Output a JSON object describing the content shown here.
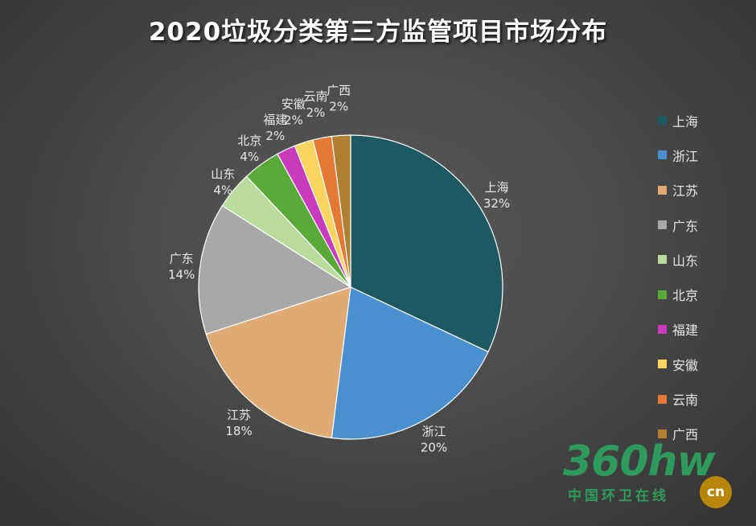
{
  "chart_data": {
    "type": "pie",
    "title": "2020垃圾分类第三方监管项目市场分布",
    "categories": [
      "上海",
      "浙江",
      "江苏",
      "广东",
      "山东",
      "北京",
      "福建",
      "安徽",
      "云南",
      "广西"
    ],
    "values": [
      32,
      20,
      18,
      14,
      4,
      4,
      2,
      2,
      2,
      2
    ],
    "data_labels": [
      "32%",
      "20%",
      "18%",
      "14%",
      "4%",
      "4%",
      "2%",
      "2%",
      "2%",
      "2%"
    ],
    "colors": [
      "#1c5962",
      "#4a90d0",
      "#e0aa74",
      "#a8a8a8",
      "#b9dc9c",
      "#5aaa3a",
      "#c83cbc",
      "#f9d560",
      "#e47835",
      "#b08030"
    ],
    "legend": [
      "上海",
      "浙江",
      "江苏",
      "广东",
      "山东",
      "北京",
      "福建",
      "安徽",
      "云南",
      "广西"
    ],
    "legend_position": "right"
  },
  "watermark": {
    "main": "360hw",
    "sub": "中国环卫在线",
    "badge": "cn"
  }
}
